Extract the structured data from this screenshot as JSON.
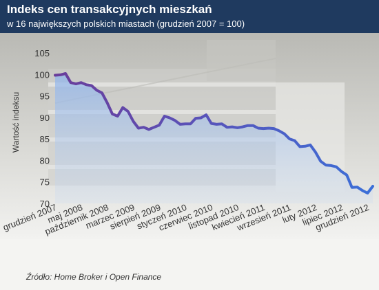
{
  "header": {
    "title": "Indeks cen transakcyjnych mieszkań",
    "subtitle": "w 16 największych polskich  miastach (grudzień 2007 = 100)"
  },
  "source": "Źródło: Home Broker i Open Finance",
  "colors": {
    "header_bg": "#1f3a5f",
    "line_start": "#6a3d9a",
    "line_end": "#3a6fd8",
    "area_fill": "#a9c6ef",
    "background_photo_tone": "#d9d9d6"
  },
  "chart_data": {
    "type": "area",
    "title": "Indeks cen transakcyjnych mieszkań",
    "subtitle": "w 16 największych polskich  miastach (grudzień 2007 = 100)",
    "xlabel": "",
    "ylabel": "Wartość indeksu",
    "ylim": [
      70,
      105
    ],
    "yticks": [
      70,
      75,
      80,
      85,
      90,
      95,
      100,
      105
    ],
    "grid": false,
    "legend": "none",
    "xtick_labels": [
      "grudzień 2007",
      "maj 2008",
      "październik 2008",
      "marzec 2009",
      "sierpień 2009",
      "styczeń 2010",
      "czerwiec 2010",
      "listopad 2010",
      "kwiecień 2011",
      "wrzesień 2011",
      "luty 2012",
      "lipiec 2012",
      "grudzień 2012"
    ],
    "xtick_month_index": [
      0,
      5,
      10,
      15,
      20,
      25,
      30,
      35,
      40,
      45,
      50,
      55,
      60
    ],
    "series": [
      {
        "start": "grudzień 2007",
        "frequency": "monthly",
        "values": [
          99.8,
          99.9,
          100.2,
          98.1,
          97.8,
          98.1,
          97.6,
          97.4,
          96.3,
          95.7,
          93.4,
          90.8,
          90.3,
          92.3,
          91.4,
          89.1,
          87.5,
          87.7,
          87.2,
          87.7,
          88.2,
          90.3,
          89.9,
          89.3,
          88.4,
          88.5,
          88.5,
          89.8,
          89.9,
          90.6,
          88.6,
          88.4,
          88.5,
          87.7,
          87.8,
          87.6,
          87.8,
          88.1,
          88.1,
          87.5,
          87.4,
          87.5,
          87.4,
          86.9,
          86.2,
          85.0,
          84.6,
          83.2,
          83.3,
          83.6,
          81.9,
          79.8,
          78.9,
          78.8,
          78.5,
          77.4,
          76.6,
          73.7,
          73.8,
          73.0,
          72.4,
          74.0
        ]
      }
    ]
  }
}
